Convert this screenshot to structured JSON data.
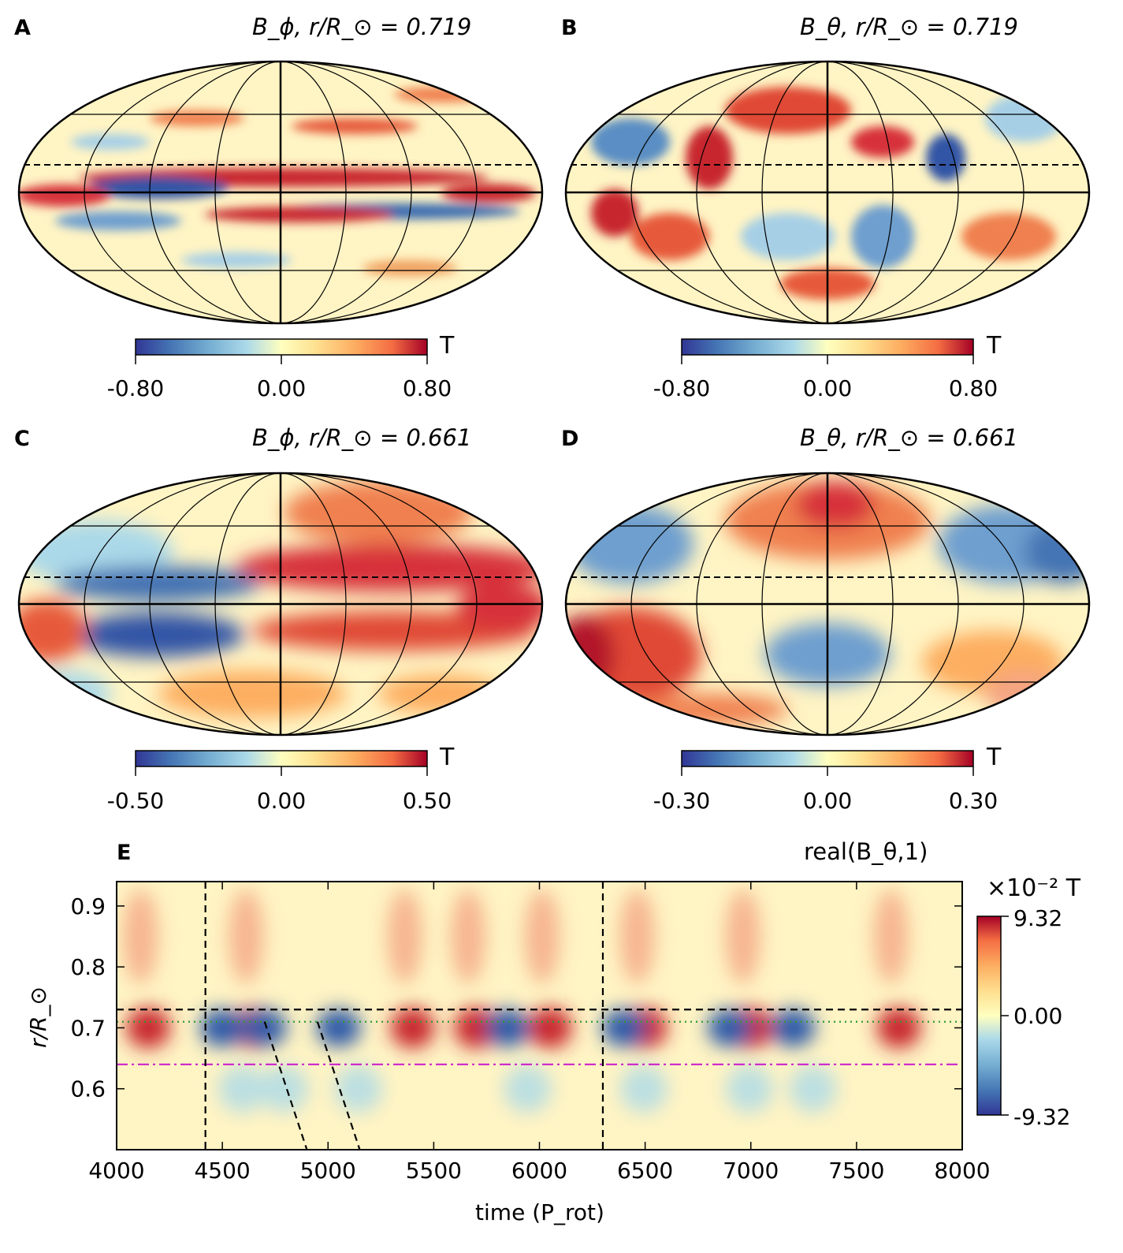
{
  "panels": [
    {
      "label": "A",
      "title": "B_ϕ,  r/R_⊙ = 0.719",
      "colorbar": {
        "min": -0.8,
        "max": 0.8,
        "ticks": [
          "-0.80",
          "0.00",
          "0.80"
        ],
        "unit": "T"
      }
    },
    {
      "label": "B",
      "title": "B_θ,  r/R_⊙ = 0.719",
      "colorbar": {
        "min": -0.8,
        "max": 0.8,
        "ticks": [
          "-0.80",
          "0.00",
          "0.80"
        ],
        "unit": "T"
      }
    },
    {
      "label": "C",
      "title": "B_ϕ,  r/R_⊙ = 0.661",
      "colorbar": {
        "min": -0.5,
        "max": 0.5,
        "ticks": [
          "-0.50",
          "0.00",
          "0.50"
        ],
        "unit": "T"
      }
    },
    {
      "label": "D",
      "title": "B_θ,  r/R_⊙ = 0.661",
      "colorbar": {
        "min": -0.3,
        "max": 0.3,
        "ticks": [
          "-0.30",
          "0.00",
          "0.30"
        ],
        "unit": "T"
      }
    }
  ],
  "panel_e": {
    "label": "E",
    "title": "real(B_θ,1)",
    "xlabel": "time (P_rot)",
    "ylabel": "r/R_⊙",
    "colorbar": {
      "unit": "×10⁻² T",
      "ticks": [
        "9.32",
        "0.00",
        "-9.32"
      ],
      "max": 9.32,
      "min": -9.32
    }
  },
  "colors": {
    "positive": "#b2182b",
    "negative": "#2c5aa8",
    "zero": "#ffffbf",
    "green_line": "#2e9b2e",
    "magenta_line": "#cc22cc"
  },
  "chart_data": [
    {
      "type": "heatmap",
      "panel": "A",
      "projection": "mollweide",
      "quantity": "B_phi",
      "r_over_Rsun": 0.719,
      "range": [
        -0.8,
        0.8
      ],
      "unit": "T"
    },
    {
      "type": "heatmap",
      "panel": "B",
      "projection": "mollweide",
      "quantity": "B_theta",
      "r_over_Rsun": 0.719,
      "range": [
        -0.8,
        0.8
      ],
      "unit": "T"
    },
    {
      "type": "heatmap",
      "panel": "C",
      "projection": "mollweide",
      "quantity": "B_phi",
      "r_over_Rsun": 0.661,
      "range": [
        -0.5,
        0.5
      ],
      "unit": "T"
    },
    {
      "type": "heatmap",
      "panel": "D",
      "projection": "mollweide",
      "quantity": "B_theta",
      "r_over_Rsun": 0.661,
      "range": [
        -0.3,
        0.3
      ],
      "unit": "T"
    },
    {
      "type": "heatmap",
      "panel": "E",
      "x_ticks": [
        4000,
        4500,
        5000,
        5500,
        6000,
        6500,
        7000,
        7500,
        8000
      ],
      "y_ticks": [
        0.6,
        0.7,
        0.8,
        0.9
      ],
      "xlim": [
        4000,
        8000
      ],
      "ylim": [
        0.5,
        0.94
      ],
      "range": [
        -9.32,
        9.32
      ],
      "vertical_lines": [
        4420,
        6300
      ],
      "horizontal_lines": [
        {
          "y": 0.73,
          "style": "dashed",
          "color": "black"
        },
        {
          "y": 0.71,
          "style": "dotted",
          "color": "green"
        },
        {
          "y": 0.64,
          "style": "dashdot",
          "color": "magenta"
        }
      ],
      "slope_lines": [
        {
          "x0": 4700,
          "y0": 0.71,
          "x1": 4900,
          "y1": 0.5
        },
        {
          "x0": 4950,
          "y0": 0.71,
          "x1": 5150,
          "y1": 0.5
        }
      ],
      "cycle_centers_red": [
        4150,
        4650,
        5400,
        5700,
        6050,
        6500,
        7000,
        7700
      ],
      "cycle_centers_blue": [
        4500,
        4700,
        5050,
        5850,
        6400,
        6900,
        7200
      ]
    }
  ]
}
